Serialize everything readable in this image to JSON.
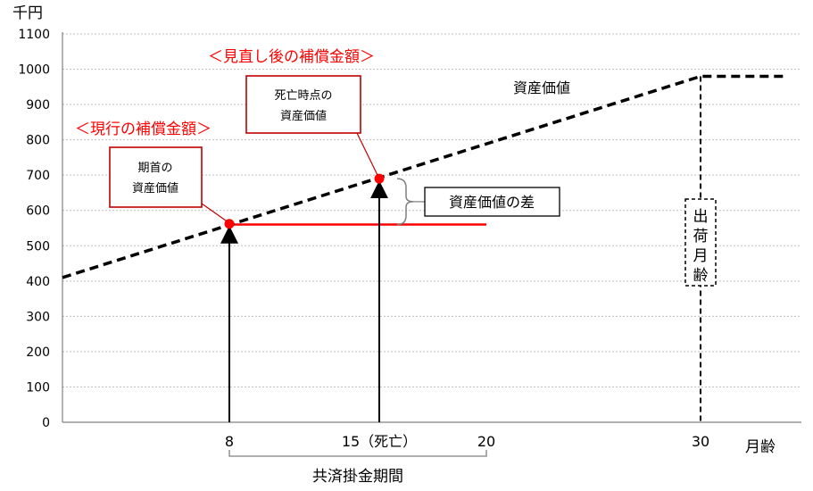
{
  "chart_data": {
    "type": "line",
    "ylabel": "千円",
    "xlabel": "月齢",
    "ylim": [
      0,
      1100
    ],
    "yticks": [
      0,
      100,
      200,
      300,
      400,
      500,
      600,
      700,
      800,
      900,
      1000,
      1100
    ],
    "grid": true,
    "xticks": [
      {
        "x": 8,
        "label": "8"
      },
      {
        "x": 15,
        "label": "15（死亡）"
      },
      {
        "x": 20,
        "label": "20"
      },
      {
        "x": 30,
        "label": "30"
      }
    ],
    "series": [
      {
        "name": "資産価値",
        "style": "dashed",
        "color": "#000000",
        "points": [
          [
            -3,
            410
          ],
          [
            30,
            980
          ],
          [
            34,
            980
          ]
        ]
      }
    ],
    "current_compensation_line": {
      "x_start": 8,
      "x_end": 20,
      "y": 560,
      "color": "#ff0000"
    },
    "markers": [
      {
        "x": 8,
        "y": 562,
        "color": "#ff0000"
      },
      {
        "x": 15,
        "y": 690,
        "color": "#ff0000"
      }
    ],
    "shipping_age": {
      "x": 30,
      "label": "出荷月齢"
    },
    "period_bracket": {
      "x_start": 8,
      "x_end": 20,
      "label": "共済掛金期間"
    },
    "annotations": {
      "series_label": "資産価値",
      "revised_label": "＜見直し後の補償金額＞",
      "current_label": "＜現行の補償金額＞",
      "box_start_line1": "期首の",
      "box_start_line2": "資産価値",
      "box_death_line1": "死亡時点の",
      "box_death_line2": "資産価値",
      "diff_label": "資産価値の差"
    },
    "colors": {
      "accent": "#ff0000",
      "box_border": "#c00000",
      "grid": "#bfbfbf"
    }
  }
}
